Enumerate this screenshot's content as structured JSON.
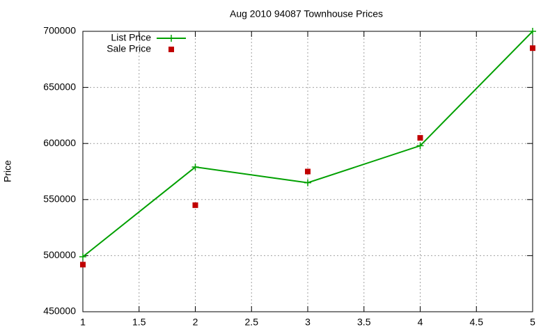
{
  "chart_data": {
    "type": "line",
    "title": "Aug 2010 94087 Townhouse Prices",
    "y_label": "Price",
    "x": [
      1,
      2,
      3,
      4,
      5
    ],
    "series": [
      {
        "name": "List Price",
        "color": "#00a000",
        "style": "linespoints",
        "values": [
          499000,
          579000,
          565000,
          598000,
          700000
        ]
      },
      {
        "name": "Sale Price",
        "color": "#c00000",
        "style": "points",
        "values": [
          492000,
          545000,
          575000,
          605000,
          685000
        ]
      }
    ],
    "xlim": [
      1,
      5
    ],
    "xticks": [
      1,
      1.5,
      2,
      2.5,
      3,
      3.5,
      4,
      4.5,
      5
    ],
    "ylim": [
      450000,
      700000
    ],
    "yticks": [
      450000,
      500000,
      550000,
      600000,
      650000,
      700000
    ],
    "grid": true,
    "legend": "top-left"
  }
}
